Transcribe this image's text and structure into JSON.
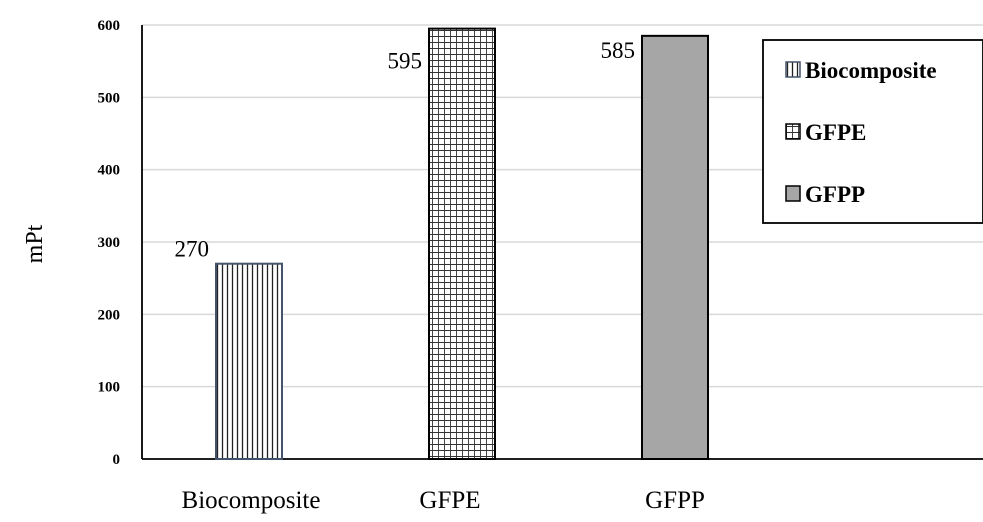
{
  "chart_data": {
    "type": "bar",
    "categories": [
      "Biocomposite",
      "GFPE",
      "GFPP"
    ],
    "values": [
      270,
      595,
      585
    ],
    "data_labels": [
      "270",
      "595",
      "585"
    ],
    "series": [
      {
        "name": "Biocomposite",
        "values": [
          270,
          null,
          null
        ]
      },
      {
        "name": "GFPE",
        "values": [
          null,
          595,
          null
        ]
      },
      {
        "name": "GFPP",
        "values": [
          null,
          null,
          585
        ]
      }
    ],
    "title": "",
    "xlabel": "",
    "ylabel": "mPt",
    "ylim": [
      0,
      600
    ],
    "yticks": [
      "0",
      "100",
      "200",
      "300",
      "400",
      "500",
      "600"
    ],
    "grid": true,
    "legend_position": "top-right",
    "colors": {
      "biocomposite_fill": "#ffffff",
      "biocomposite_stripes": "#222222",
      "biocomposite_border": "#44546a",
      "gfpe_fill": "#ffffff",
      "gfpe_grid": "#333333",
      "gfpp_fill": "#a6a6a6",
      "bar_border": "#000000",
      "gridline": "#d9d9d9"
    }
  }
}
